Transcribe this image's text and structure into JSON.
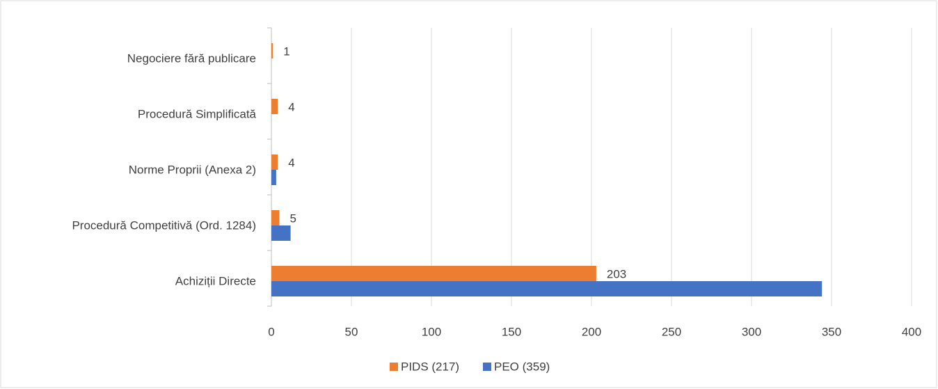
{
  "chart_data": {
    "type": "hbar",
    "categories": [
      "Negociere fără publicare",
      "Procedură Simplificată",
      "Norme Proprii (Anexa 2)",
      "Procedură Competitivă (Ord. 1284)",
      "Achiziții Directe"
    ],
    "series": [
      {
        "name": "PIDS (217)",
        "color": "#ed7d31",
        "values": [
          1,
          4,
          4,
          5,
          203
        ],
        "data_labels": true
      },
      {
        "name": "PEO (359)",
        "color": "#4472c4",
        "values": [
          0,
          0,
          3,
          12,
          344
        ],
        "data_labels": false
      }
    ],
    "xlim": [
      0,
      400
    ],
    "xticks": [
      0,
      50,
      100,
      150,
      200,
      250,
      300,
      350,
      400
    ],
    "grid": true,
    "legend": "bottom"
  }
}
